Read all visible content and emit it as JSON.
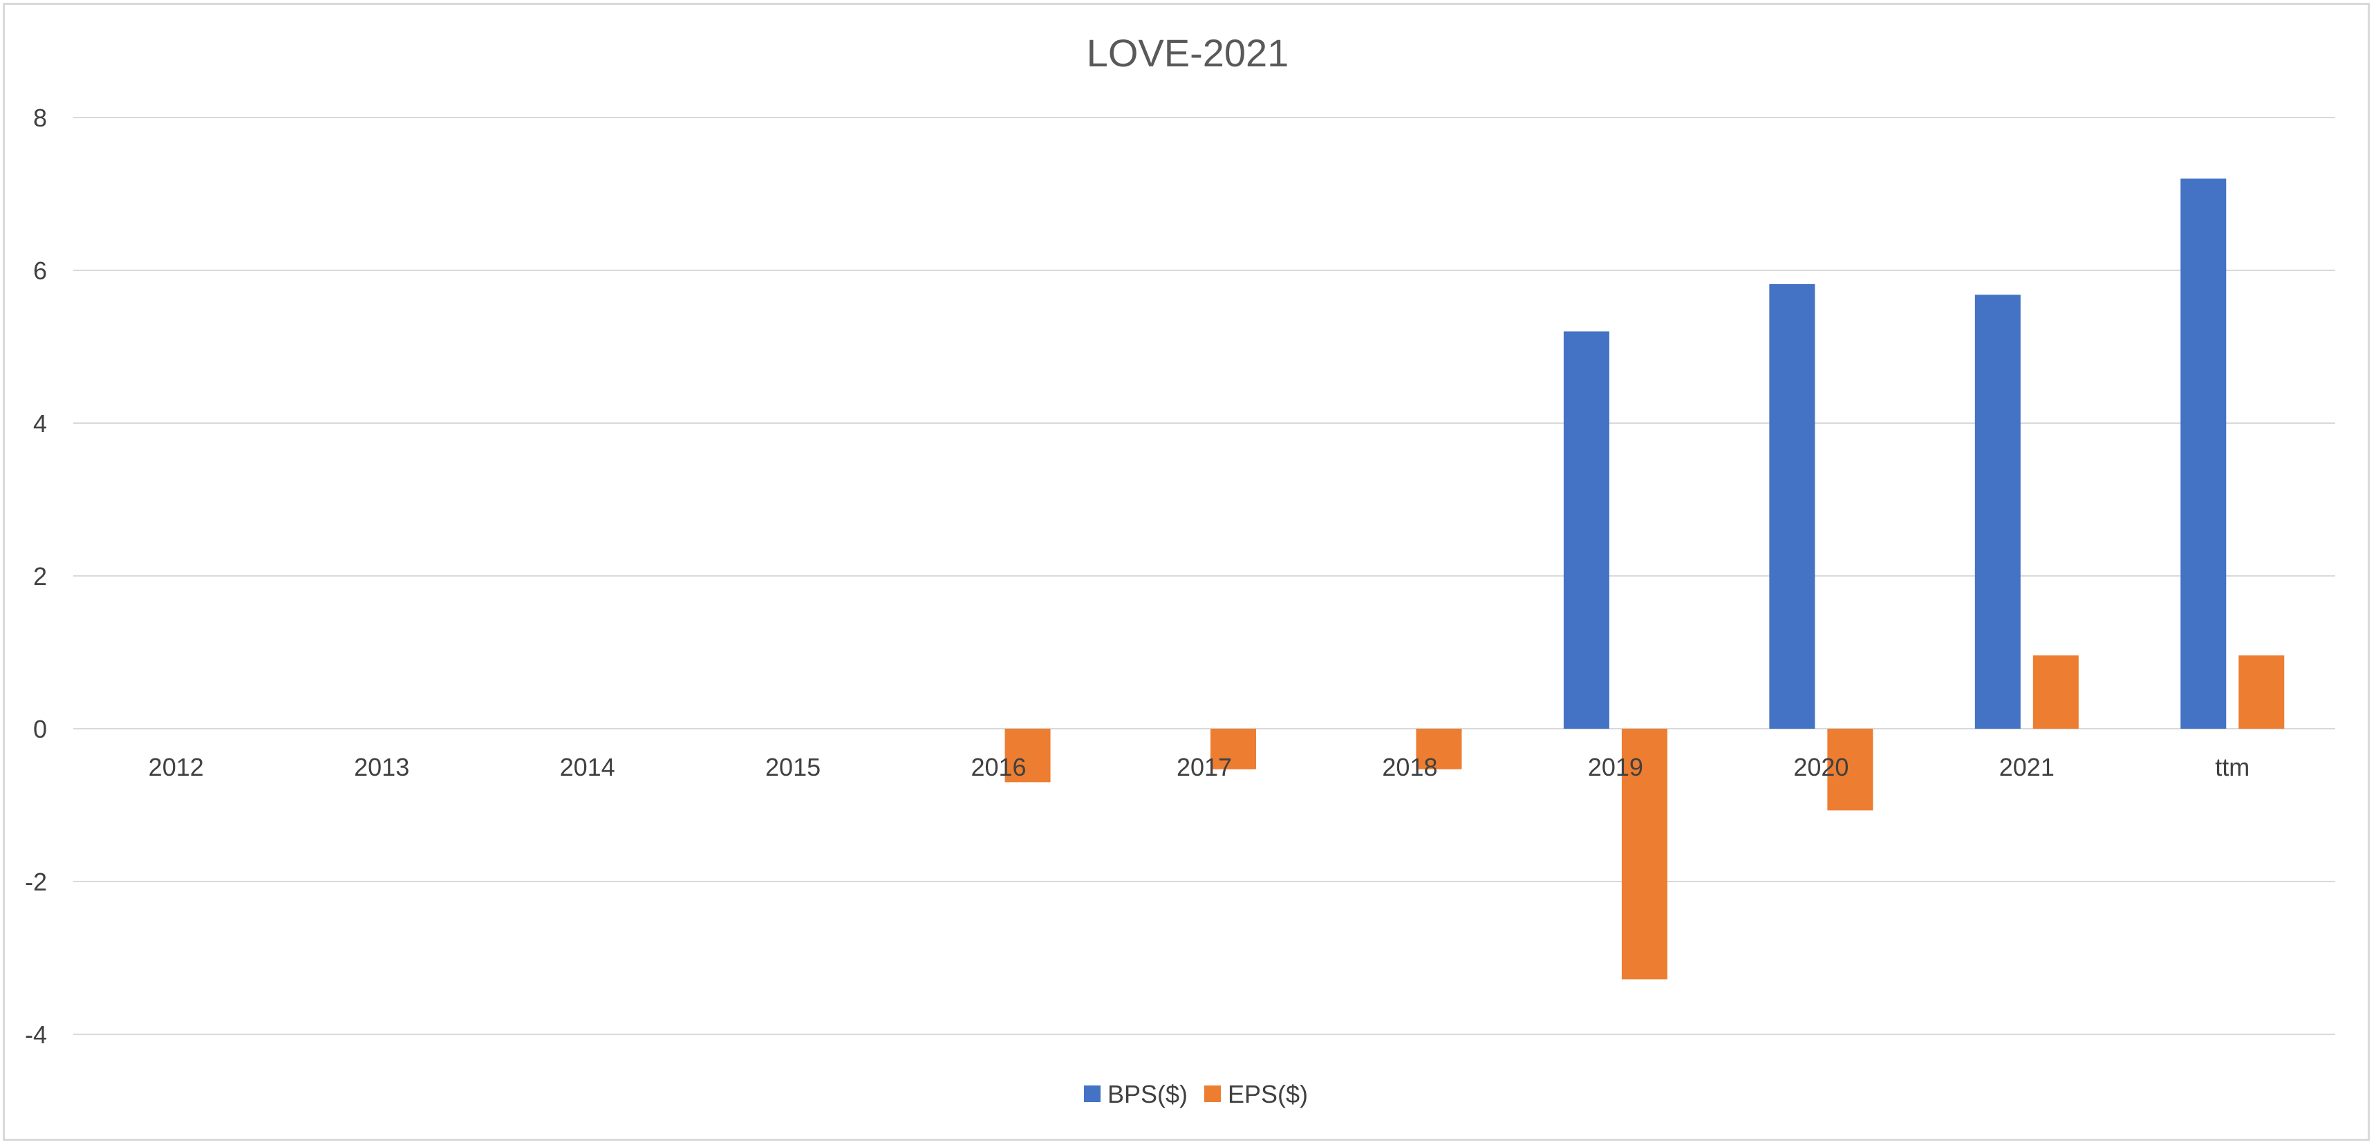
{
  "chart_data": {
    "type": "bar",
    "title": "LOVE-2021",
    "xlabel": "",
    "ylabel": "",
    "categories": [
      "2012",
      "2013",
      "2014",
      "2015",
      "2016",
      "2017",
      "2018",
      "2019",
      "2020",
      "2021",
      "ttm"
    ],
    "series": [
      {
        "name": "BPS($)",
        "color": "#4472C4",
        "values": [
          0,
          0,
          0,
          0,
          0,
          0,
          0,
          5.2,
          5.82,
          5.68,
          7.2
        ]
      },
      {
        "name": "EPS($)",
        "color": "#ED7D31",
        "values": [
          0,
          0,
          0,
          0,
          -0.7,
          -0.53,
          -0.53,
          -3.28,
          -1.07,
          0.96,
          0.96
        ]
      }
    ],
    "ylim": [
      -4,
      8
    ],
    "yticks": [
      "-4",
      "-2",
      "0",
      "2",
      "4",
      "6",
      "8"
    ],
    "grid": true,
    "legend_position": "bottom"
  }
}
